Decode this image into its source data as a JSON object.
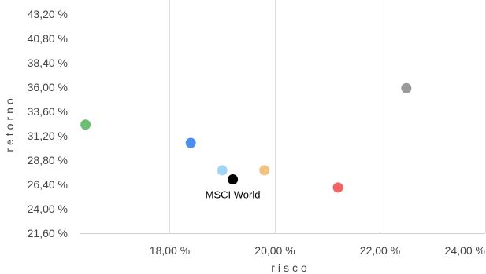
{
  "chart_data": {
    "type": "scatter",
    "xlabel": "risco",
    "ylabel": "retorno",
    "xlim": [
      16.3,
      24.0
    ],
    "ylim": [
      21.6,
      43.2
    ],
    "x_ticks": [
      {
        "value": 18.0,
        "label": "18,00 %"
      },
      {
        "value": 20.0,
        "label": "20,00 %"
      },
      {
        "value": 22.0,
        "label": "22,00 %"
      },
      {
        "value": 24.0,
        "label": "24,00 %"
      }
    ],
    "y_ticks": [
      {
        "value": 21.6,
        "label": "21,60 %"
      },
      {
        "value": 24.0,
        "label": "24,00 %"
      },
      {
        "value": 26.4,
        "label": "26,40 %"
      },
      {
        "value": 28.8,
        "label": "28,80 %"
      },
      {
        "value": 31.2,
        "label": "31,20 %"
      },
      {
        "value": 33.6,
        "label": "33,60 %"
      },
      {
        "value": 36.0,
        "label": "36,00 %"
      },
      {
        "value": 38.4,
        "label": "38,40 %"
      },
      {
        "value": 40.8,
        "label": "40,80 %"
      },
      {
        "value": 43.2,
        "label": "43,20 %"
      }
    ],
    "grid": {
      "vertical": true,
      "horizontal": false
    },
    "points": [
      {
        "x": 16.4,
        "y": 32.3,
        "color": "#6bbf73"
      },
      {
        "x": 18.4,
        "y": 30.5,
        "color": "#4c8ded"
      },
      {
        "x": 19.0,
        "y": 27.8,
        "color": "#9fd6f7"
      },
      {
        "x": 19.2,
        "y": 26.9,
        "color": "#000000",
        "label": "MSCI World"
      },
      {
        "x": 19.8,
        "y": 27.8,
        "color": "#f0c283"
      },
      {
        "x": 21.2,
        "y": 26.1,
        "color": "#f26464"
      },
      {
        "x": 22.5,
        "y": 35.9,
        "color": "#9a9a9a"
      }
    ]
  }
}
